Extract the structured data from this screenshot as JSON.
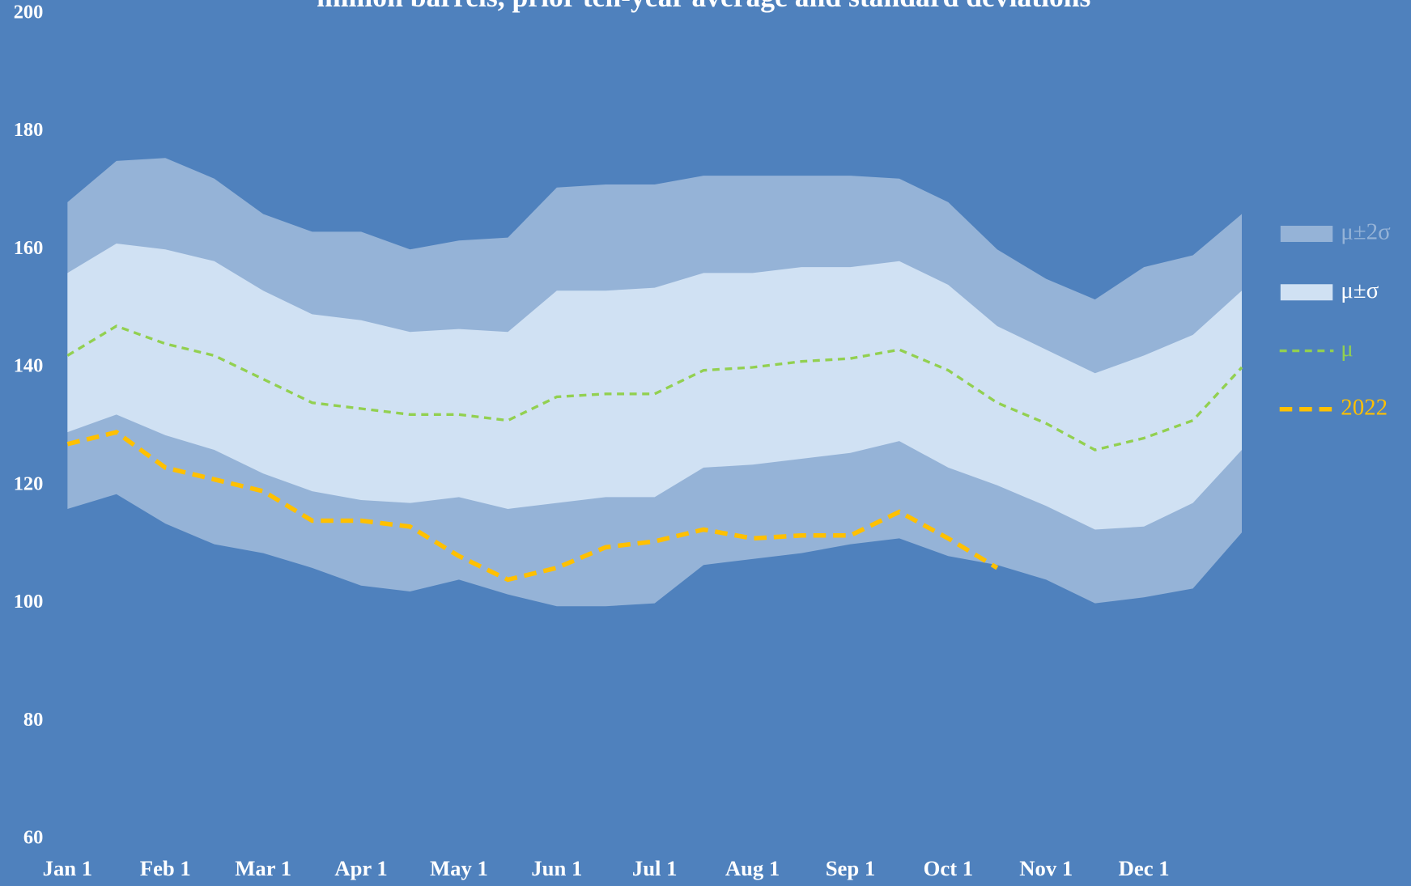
{
  "chart_data": {
    "type": "band",
    "title": "million barrels, prior ten-year average and standard deviations",
    "categories": [
      "Jan 1",
      null,
      "Feb 1",
      null,
      "Mar 1",
      null,
      "Apr 1",
      null,
      "May 1",
      null,
      "Jun 1",
      null,
      "Jul 1",
      null,
      "Aug 1",
      null,
      "Sep 1",
      null,
      "Oct 1",
      null,
      "Nov 1",
      null,
      "Dec 1",
      null,
      null
    ],
    "series": [
      {
        "name": "μ±2σ",
        "color": "#95b3d7",
        "kind": "band",
        "values": [
          168,
          175,
          175.5,
          172,
          166,
          163,
          163,
          160,
          161.5,
          162,
          170.5,
          171,
          171,
          172.5,
          172.5,
          172.5,
          172.5,
          172,
          168,
          160,
          155,
          151.5,
          157,
          159,
          166
        ],
        "lower": [
          116,
          118.5,
          113.5,
          110,
          108.5,
          106,
          103,
          102,
          104,
          101.5,
          99.5,
          99.5,
          100,
          106.5,
          107.5,
          108.5,
          110,
          111,
          108,
          106.5,
          104,
          100,
          101,
          102.5,
          112
        ]
      },
      {
        "name": "μ±σ",
        "color": "#d0e1f3",
        "kind": "band",
        "values": [
          156,
          161,
          160,
          158,
          153,
          149,
          148,
          146,
          146.5,
          146,
          153,
          153,
          153.5,
          156,
          156,
          157,
          157,
          158,
          154,
          147,
          143,
          139,
          142,
          145.5,
          153
        ],
        "lower": [
          129,
          132,
          128.5,
          126,
          122,
          119,
          117.5,
          117,
          118,
          116,
          117,
          118,
          118,
          123,
          123.5,
          124.5,
          125.5,
          127.5,
          123,
          120,
          116.5,
          112.5,
          113,
          117,
          126
        ]
      },
      {
        "name": "μ",
        "color": "#92d050",
        "kind": "line",
        "values": [
          142,
          147,
          144,
          142,
          138,
          134,
          133,
          132,
          132,
          131,
          135,
          135.5,
          135.5,
          139.5,
          140,
          141,
          141.5,
          143,
          139.5,
          134,
          130.5,
          126,
          128,
          131,
          140
        ]
      },
      {
        "name": "2022",
        "color": "#ffc000",
        "kind": "line",
        "values": [
          127,
          129,
          123,
          121,
          119,
          114,
          114,
          113,
          108,
          104,
          106,
          109.5,
          110.5,
          112.5,
          111,
          111.5,
          111.5,
          115.5,
          111,
          106,
          null,
          null,
          null,
          null,
          null
        ]
      }
    ],
    "ylim": [
      60,
      200
    ],
    "yticks": [
      60,
      80,
      100,
      120,
      140,
      160,
      180,
      200
    ],
    "legend": "right"
  }
}
